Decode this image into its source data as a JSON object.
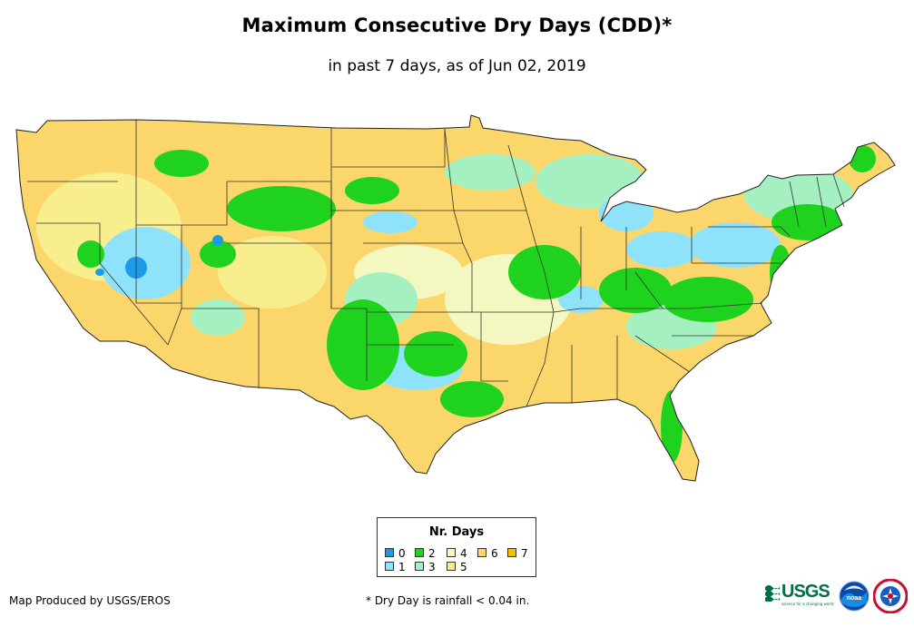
{
  "title": "Maximum Consecutive Dry Days (CDD)*",
  "subtitle": "in past 7 days, as of Jun 02, 2019",
  "legend": {
    "title": "Nr. Days",
    "items": [
      {
        "label": "0",
        "color": "#1e9be8"
      },
      {
        "label": "1",
        "color": "#8ee3fb"
      },
      {
        "label": "2",
        "color": "#1ed21e"
      },
      {
        "label": "3",
        "color": "#a4f0c0"
      },
      {
        "label": "4",
        "color": "#f4f7c0"
      },
      {
        "label": "5",
        "color": "#f8ee8e"
      },
      {
        "label": "6",
        "color": "#fbd66a"
      },
      {
        "label": "7",
        "color": "#f6c100"
      }
    ]
  },
  "credit": "Map Produced by USGS/EROS",
  "footnote": "* Dry Day is rainfall < 0.04 in.",
  "logos": {
    "usgs": {
      "text": "USGS",
      "tagline": "science for a changing world"
    },
    "noaa": {
      "text": "noaa"
    }
  }
}
